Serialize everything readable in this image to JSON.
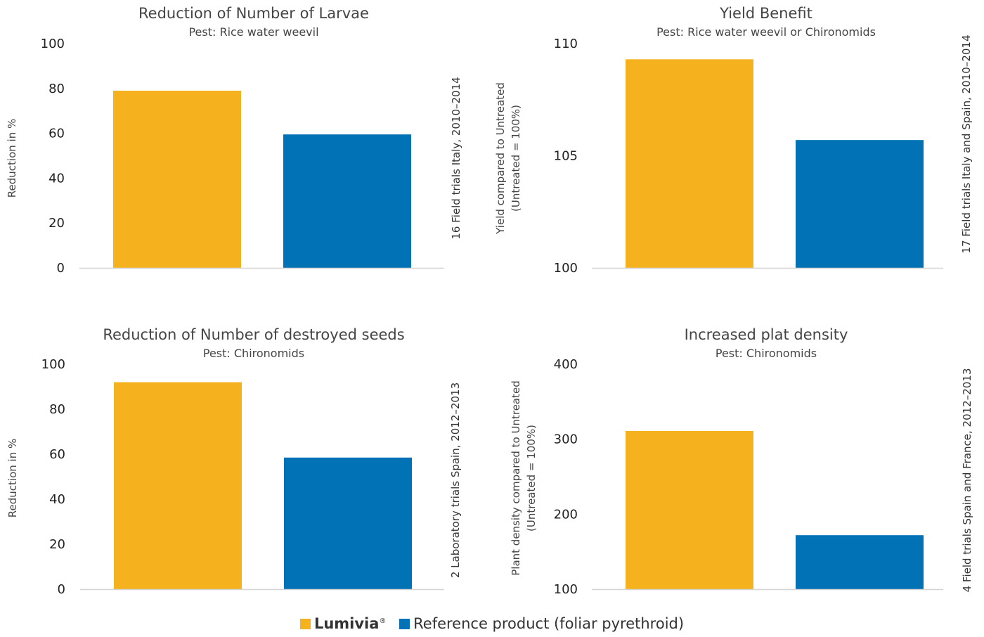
{
  "colors": {
    "lumivia": "#F6B21E",
    "reference": "#0072B5",
    "baseline": "#D4D4D4"
  },
  "legend": {
    "lumivia_label": "Lumivia",
    "lumivia_mark": "®",
    "reference_label": "Reference product (foliar pyrethroid)"
  },
  "chart_data": [
    {
      "type": "bar",
      "title": "Reduction of Number of Larvae",
      "subtitle": "Pest: Rice water weevil",
      "ylabel": [
        "Reduction in %"
      ],
      "ylim": [
        0,
        100
      ],
      "yticks": [
        "0",
        "20",
        "40",
        "60",
        "80",
        "100"
      ],
      "side_note": "16 Field trials Italy, 2010–2014",
      "grid": false,
      "series": [
        {
          "key": "lumivia",
          "values": [
            79
          ]
        },
        {
          "key": "reference",
          "values": [
            59.5
          ]
        }
      ]
    },
    {
      "type": "bar",
      "title": "Yield Benefit",
      "subtitle": "Pest: Rice water weevil or Chironomids",
      "ylabel": [
        "Yield compared to Untreated",
        "(Untreated = 100%)"
      ],
      "ylim": [
        100,
        110
      ],
      "yticks": [
        "100",
        "105",
        "110"
      ],
      "side_note": "17 Field trials Italy and Spain, 2010–2014",
      "grid": false,
      "series": [
        {
          "key": "lumivia",
          "values": [
            109.3
          ]
        },
        {
          "key": "reference",
          "values": [
            105.7
          ]
        }
      ]
    },
    {
      "type": "bar",
      "title": "Reduction of Number of destroyed seeds",
      "subtitle": "Pest: Chironomids",
      "ylabel": [
        "Reduction in %"
      ],
      "ylim": [
        0,
        100
      ],
      "yticks": [
        "0",
        "20",
        "40",
        "60",
        "80",
        "100"
      ],
      "side_note": "2 Laboratory trials Spain, 2012–2013",
      "grid": false,
      "series": [
        {
          "key": "lumivia",
          "values": [
            92
          ]
        },
        {
          "key": "reference",
          "values": [
            58.5
          ]
        }
      ]
    },
    {
      "type": "bar",
      "title": "Increased plat density",
      "subtitle": "Pest: Chironomids",
      "ylabel": [
        "Plant density compared to Untreated",
        "(Untreated = 100%)"
      ],
      "ylim": [
        100,
        400
      ],
      "yticks": [
        "100",
        "200",
        "300",
        "400"
      ],
      "side_note": "4 Field trials Spain and France, 2012–2013",
      "grid": false,
      "series": [
        {
          "key": "lumivia",
          "values": [
            311
          ]
        },
        {
          "key": "reference",
          "values": [
            172
          ]
        }
      ]
    }
  ]
}
